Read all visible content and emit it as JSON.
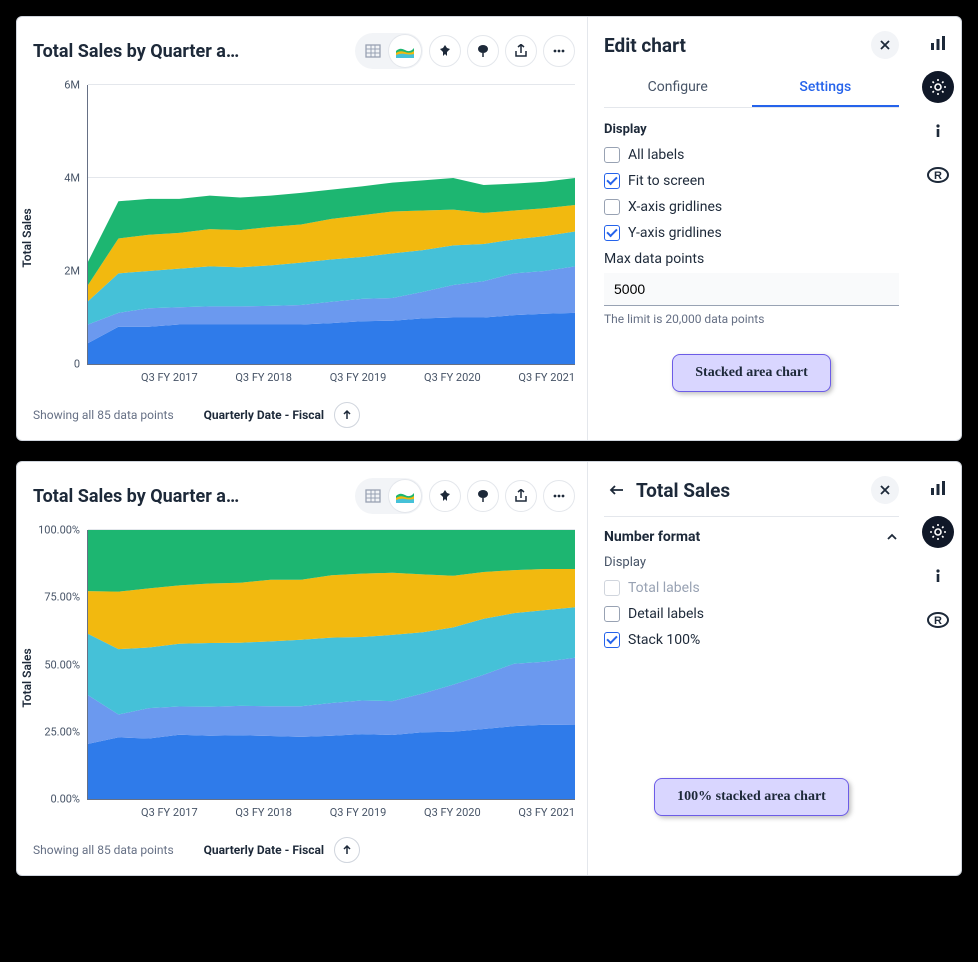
{
  "series_colors": [
    "#2f7bea",
    "#6b99ef",
    "#45c1d8",
    "#f2b90f",
    "#1db671"
  ],
  "panel1": {
    "title": "Total Sales by Quarter a…",
    "y_label": "Total Sales",
    "y_ticks": [
      "0",
      "2M",
      "4M",
      "6M"
    ],
    "y_max": 6,
    "x_ticks": [
      "Q3 FY 2017",
      "Q3 FY 2018",
      "Q3 FY 2019",
      "Q3 FY 2020",
      "Q3 FY 2021"
    ],
    "x_axis_title": "Quarterly Date - Fiscal",
    "footer_note": "Showing all 85 data points",
    "editor_title": "Edit chart",
    "tabs": {
      "configure": "Configure",
      "settings": "Settings"
    },
    "active_tab": "settings",
    "display_label": "Display",
    "checks": {
      "all_labels": {
        "label": "All labels",
        "checked": false
      },
      "fit": {
        "label": "Fit to screen",
        "checked": true
      },
      "x_grid": {
        "label": "X-axis gridlines",
        "checked": false
      },
      "y_grid": {
        "label": "Y-axis gridlines",
        "checked": true
      }
    },
    "max_pts_label": "Max data points",
    "max_pts_value": "5000",
    "max_pts_hint": "The limit is 20,000 data points",
    "callout": "Stacked area chart",
    "grid_color": "#e4e7ec",
    "series": [
      {
        "cum": [
          0.45,
          0.8,
          0.8,
          0.85,
          0.85,
          0.85,
          0.85,
          0.85,
          0.88,
          0.92,
          0.93,
          0.98,
          1.0,
          1.0,
          1.05,
          1.08,
          1.1
        ]
      },
      {
        "cum": [
          0.85,
          1.1,
          1.2,
          1.22,
          1.24,
          1.24,
          1.25,
          1.27,
          1.34,
          1.4,
          1.42,
          1.55,
          1.7,
          1.78,
          1.95,
          2.0,
          2.1
        ]
      },
      {
        "cum": [
          1.35,
          1.95,
          2.0,
          2.05,
          2.1,
          2.08,
          2.12,
          2.18,
          2.25,
          2.3,
          2.38,
          2.45,
          2.55,
          2.58,
          2.68,
          2.75,
          2.85
        ]
      },
      {
        "cum": [
          1.7,
          2.7,
          2.78,
          2.82,
          2.9,
          2.88,
          2.95,
          3.0,
          3.12,
          3.2,
          3.28,
          3.3,
          3.32,
          3.25,
          3.3,
          3.35,
          3.42
        ]
      },
      {
        "cum": [
          2.2,
          3.5,
          3.55,
          3.55,
          3.62,
          3.58,
          3.62,
          3.68,
          3.75,
          3.82,
          3.9,
          3.95,
          4.0,
          3.85,
          3.88,
          3.92,
          4.0
        ]
      }
    ]
  },
  "panel2": {
    "title": "Total Sales by Quarter a…",
    "y_label": "Total Sales",
    "y_ticks": [
      "0.00%",
      "25.00%",
      "50.00%",
      "75.00%",
      "100.00%"
    ],
    "x_ticks": [
      "Q3 FY 2017",
      "Q3 FY 2018",
      "Q3 FY 2019",
      "Q3 FY 2020",
      "Q3 FY 2021"
    ],
    "x_axis_title": "Quarterly Date - Fiscal",
    "footer_note": "Showing all 85 data points",
    "editor_title": "Total Sales",
    "section_title": "Number format",
    "display_label": "Display",
    "checks": {
      "total_labels": {
        "label": "Total labels",
        "checked": false,
        "muted": true
      },
      "detail_labels": {
        "label": "Detail labels",
        "checked": false
      },
      "stack100": {
        "label": "Stack 100%",
        "checked": true
      }
    },
    "callout": "100% stacked area chart",
    "series": [
      {
        "cum": [
          0.205,
          0.229,
          0.225,
          0.239,
          0.235,
          0.237,
          0.234,
          0.231,
          0.235,
          0.241,
          0.238,
          0.248,
          0.25,
          0.26,
          0.271,
          0.276,
          0.275
        ]
      },
      {
        "cum": [
          0.386,
          0.314,
          0.338,
          0.344,
          0.343,
          0.346,
          0.345,
          0.345,
          0.357,
          0.366,
          0.364,
          0.392,
          0.425,
          0.462,
          0.503,
          0.51,
          0.525
        ]
      },
      {
        "cum": [
          0.614,
          0.557,
          0.563,
          0.577,
          0.58,
          0.581,
          0.586,
          0.592,
          0.6,
          0.602,
          0.61,
          0.62,
          0.638,
          0.67,
          0.691,
          0.702,
          0.713
        ]
      },
      {
        "cum": [
          0.773,
          0.771,
          0.783,
          0.794,
          0.801,
          0.804,
          0.815,
          0.815,
          0.832,
          0.838,
          0.841,
          0.835,
          0.83,
          0.844,
          0.851,
          0.855,
          0.855
        ]
      },
      {
        "cum": [
          1.0,
          1.0,
          1.0,
          1.0,
          1.0,
          1.0,
          1.0,
          1.0,
          1.0,
          1.0,
          1.0,
          1.0,
          1.0,
          1.0,
          1.0,
          1.0,
          1.0
        ]
      }
    ]
  }
}
